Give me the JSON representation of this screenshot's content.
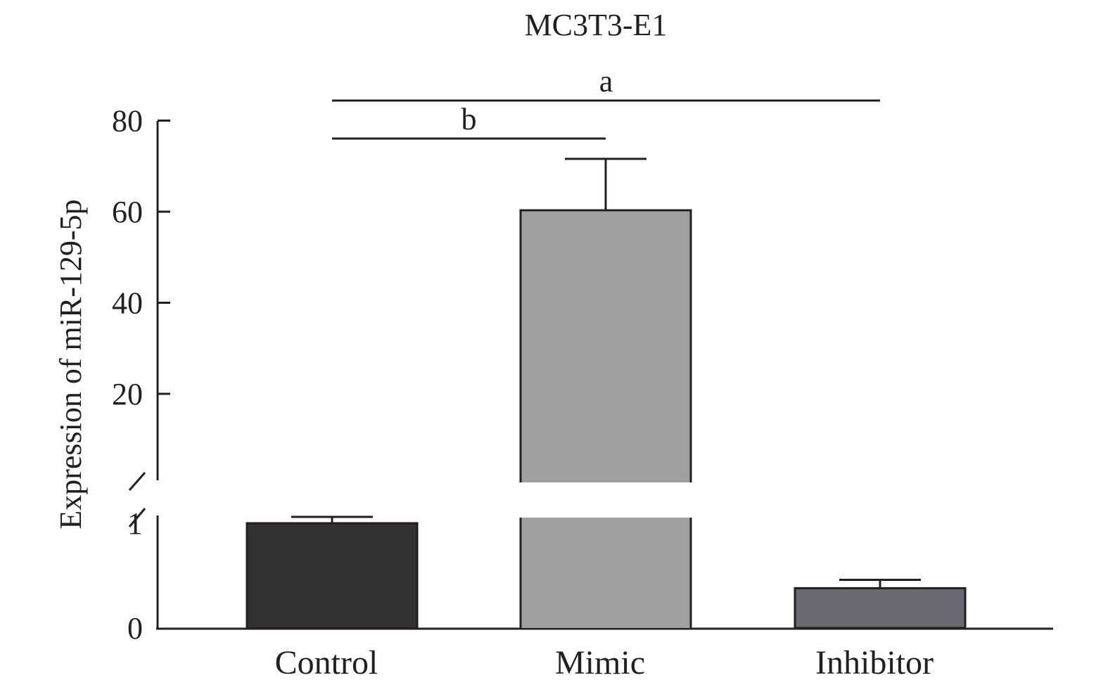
{
  "chart_data": {
    "type": "bar",
    "title": "MC3T3-E1",
    "xlabel": "",
    "ylabel": "Expression of miR-129-5p",
    "categories": [
      "Control",
      "Mimic",
      "Inhibitor"
    ],
    "values": [
      1.0,
      60.3,
      0.38
    ],
    "errors_upper": [
      1.06,
      71.6,
      0.46
    ],
    "colors": [
      "#333132",
      "#a0a0a2",
      "#6a6b72"
    ],
    "axis_break": true,
    "lower_segment": {
      "ylim": [
        0,
        1.1
      ],
      "ticks": [
        0,
        1
      ]
    },
    "upper_segment": {
      "ylim": [
        1,
        80
      ],
      "ticks": [
        20,
        40,
        60,
        80
      ]
    },
    "grid": false,
    "significance": [
      {
        "label": "b",
        "from": "Control",
        "to": "Mimic"
      },
      {
        "label": "a",
        "from": "Control",
        "to": "Inhibitor"
      }
    ]
  }
}
